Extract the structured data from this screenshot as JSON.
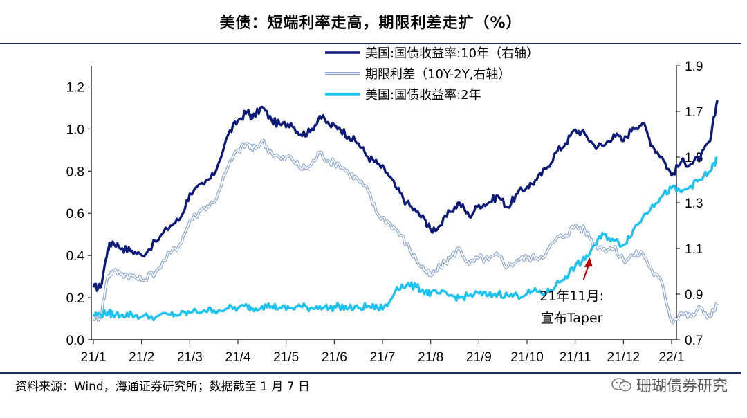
{
  "title": "美债：短端利率走高，期限利差走扩（%）",
  "source": "资料来源：Wind，海通证券研究所；数据截至 1 月 7 日",
  "brand": "珊瑚债券研究",
  "chart_data": {
    "type": "line",
    "title": "美债：短端利率走高，期限利差走扩（%）",
    "x_labels": [
      "21/1",
      "21/2",
      "21/3",
      "21/4",
      "21/5",
      "21/6",
      "21/7",
      "21/8",
      "21/9",
      "21/10",
      "21/11",
      "21/12",
      "22/1"
    ],
    "y_left": {
      "min": 0.0,
      "max": 1.3,
      "ticks": [
        "0.0",
        "0.2",
        "0.4",
        "0.6",
        "0.8",
        "1.0",
        "1.2"
      ]
    },
    "y_right": {
      "min": 0.7,
      "max": 1.9,
      "ticks": [
        "0.7",
        "0.9",
        "1.1",
        "1.3",
        "1.5",
        "1.7",
        "1.9"
      ]
    },
    "series": [
      {
        "name": "美国:国债收益率:10年（右轴）",
        "axis": "right",
        "color": "#0d1a7a",
        "t": [
          0,
          0.15,
          0.3,
          0.4,
          0.6,
          0.8,
          1.0,
          1.3,
          1.6,
          1.8,
          2.0,
          2.3,
          2.5,
          2.8,
          3.0,
          3.2,
          3.3,
          3.5,
          3.7,
          3.9,
          4.1,
          4.3,
          4.5,
          4.7,
          4.9,
          5.1,
          5.3,
          5.5,
          5.7,
          5.9,
          6.1,
          6.3,
          6.5,
          6.7,
          6.9,
          7.0,
          7.2,
          7.4,
          7.6,
          7.8,
          8.0,
          8.2,
          8.4,
          8.6,
          8.8,
          9.0,
          9.2,
          9.4,
          9.6,
          9.8,
          10.0,
          10.2,
          10.4,
          10.6,
          10.8,
          11.0,
          11.2,
          11.4,
          11.6,
          11.8,
          12.0,
          12.2,
          12.4,
          12.6,
          12.8,
          12.95
        ],
        "values": [
          0.93,
          0.93,
          1.1,
          1.13,
          1.1,
          1.09,
          1.07,
          1.13,
          1.2,
          1.23,
          1.34,
          1.38,
          1.42,
          1.6,
          1.66,
          1.7,
          1.67,
          1.72,
          1.66,
          1.64,
          1.65,
          1.6,
          1.61,
          1.68,
          1.64,
          1.63,
          1.59,
          1.56,
          1.5,
          1.47,
          1.43,
          1.36,
          1.3,
          1.26,
          1.22,
          1.18,
          1.2,
          1.26,
          1.3,
          1.24,
          1.29,
          1.3,
          1.33,
          1.28,
          1.34,
          1.37,
          1.4,
          1.45,
          1.52,
          1.56,
          1.62,
          1.6,
          1.55,
          1.55,
          1.6,
          1.57,
          1.63,
          1.65,
          1.55,
          1.5,
          1.42,
          1.48,
          1.47,
          1.5,
          1.57,
          1.75
        ]
      },
      {
        "name": "期限利差（10Y-2Y,右轴）",
        "axis": "right",
        "color": "#8ea6d4",
        "t": [
          0,
          0.15,
          0.3,
          0.4,
          0.6,
          0.8,
          1.0,
          1.3,
          1.6,
          1.8,
          2.0,
          2.3,
          2.5,
          2.8,
          3.0,
          3.2,
          3.3,
          3.5,
          3.7,
          3.9,
          4.1,
          4.3,
          4.5,
          4.7,
          4.9,
          5.1,
          5.3,
          5.5,
          5.7,
          5.9,
          6.1,
          6.3,
          6.5,
          6.7,
          6.9,
          7.0,
          7.2,
          7.4,
          7.6,
          7.8,
          8.0,
          8.2,
          8.4,
          8.6,
          8.8,
          9.0,
          9.2,
          9.4,
          9.6,
          9.8,
          10.0,
          10.2,
          10.4,
          10.6,
          10.8,
          11.0,
          11.2,
          11.4,
          11.6,
          11.8,
          12.0,
          12.2,
          12.4,
          12.6,
          12.8,
          12.95
        ],
        "values": [
          0.8,
          0.8,
          0.98,
          1.0,
          0.99,
          0.98,
          0.96,
          1.0,
          1.08,
          1.12,
          1.22,
          1.28,
          1.3,
          1.46,
          1.53,
          1.56,
          1.53,
          1.57,
          1.52,
          1.49,
          1.5,
          1.45,
          1.46,
          1.52,
          1.48,
          1.47,
          1.43,
          1.4,
          1.35,
          1.25,
          1.22,
          1.18,
          1.12,
          1.05,
          1.0,
          0.98,
          1.02,
          1.06,
          1.1,
          1.03,
          1.06,
          1.05,
          1.07,
          1.02,
          1.05,
          1.06,
          1.06,
          1.08,
          1.14,
          1.16,
          1.2,
          1.18,
          1.12,
          1.1,
          1.1,
          1.05,
          1.07,
          1.08,
          1.0,
          0.95,
          0.78,
          0.82,
          0.8,
          0.84,
          0.8,
          0.86
        ]
      },
      {
        "name": "美国:国债收益率:2年",
        "axis": "left",
        "color": "#1cc3f0",
        "t": [
          0,
          0.15,
          0.3,
          0.4,
          0.6,
          0.8,
          1.0,
          1.3,
          1.6,
          1.8,
          2.0,
          2.3,
          2.5,
          2.8,
          3.0,
          3.2,
          3.3,
          3.5,
          3.7,
          3.9,
          4.1,
          4.3,
          4.5,
          4.7,
          4.9,
          5.1,
          5.3,
          5.5,
          5.7,
          5.9,
          6.1,
          6.3,
          6.5,
          6.7,
          6.9,
          7.0,
          7.2,
          7.4,
          7.6,
          7.8,
          8.0,
          8.2,
          8.4,
          8.6,
          8.8,
          9.0,
          9.2,
          9.4,
          9.6,
          9.8,
          10.0,
          10.2,
          10.4,
          10.6,
          10.8,
          11.0,
          11.2,
          11.4,
          11.6,
          11.8,
          12.0,
          12.2,
          12.4,
          12.6,
          12.8,
          12.95
        ],
        "values": [
          0.12,
          0.12,
          0.13,
          0.12,
          0.12,
          0.12,
          0.11,
          0.11,
          0.12,
          0.12,
          0.13,
          0.14,
          0.14,
          0.15,
          0.15,
          0.16,
          0.15,
          0.16,
          0.16,
          0.15,
          0.15,
          0.16,
          0.15,
          0.16,
          0.15,
          0.16,
          0.15,
          0.15,
          0.16,
          0.15,
          0.16,
          0.25,
          0.26,
          0.25,
          0.23,
          0.22,
          0.22,
          0.21,
          0.2,
          0.21,
          0.22,
          0.21,
          0.22,
          0.21,
          0.21,
          0.22,
          0.23,
          0.22,
          0.26,
          0.3,
          0.35,
          0.38,
          0.45,
          0.5,
          0.47,
          0.45,
          0.52,
          0.58,
          0.64,
          0.68,
          0.72,
          0.7,
          0.73,
          0.76,
          0.8,
          0.86
        ]
      }
    ],
    "annotation": {
      "line1": "21年11月:",
      "line2": "宣布Taper"
    }
  }
}
